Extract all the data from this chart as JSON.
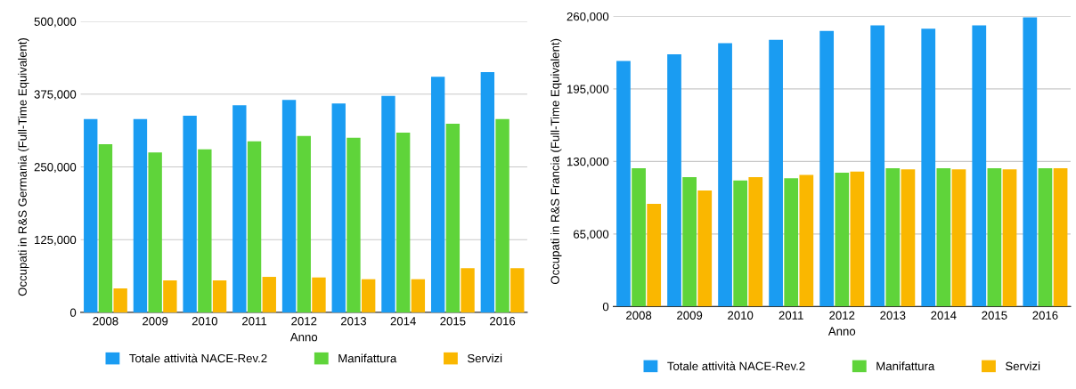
{
  "chart_data": [
    {
      "type": "bar",
      "xlabel": "Anno",
      "ylabel": "Occupati in R&S Germania (Full-Time Equivalent)",
      "categories": [
        "2008",
        "2009",
        "2010",
        "2011",
        "2012",
        "2013",
        "2014",
        "2015",
        "2016"
      ],
      "series": [
        {
          "name": "Totale attività NACE-Rev.2",
          "color": "#1a9cf2",
          "values": [
            332000,
            332000,
            338000,
            356000,
            365000,
            359000,
            372000,
            405000,
            413000
          ]
        },
        {
          "name": "Manifattura",
          "color": "#5fd43a",
          "values": [
            289000,
            275000,
            280000,
            294000,
            303000,
            300000,
            309000,
            324000,
            332000
          ]
        },
        {
          "name": "Servizi",
          "color": "#fab700",
          "values": [
            41000,
            55000,
            55000,
            61000,
            60000,
            57000,
            57000,
            76000,
            76000
          ]
        }
      ],
      "ylim": [
        0,
        500000
      ],
      "yticks": [
        {
          "value": 0,
          "label": "0"
        },
        {
          "value": 125000,
          "label": "125,000"
        },
        {
          "value": 250000,
          "label": "250,000"
        },
        {
          "value": 375000,
          "label": "375,000"
        },
        {
          "value": 500000,
          "label": "500,000"
        }
      ],
      "grid": "y",
      "legend": "bottom"
    },
    {
      "type": "bar",
      "xlabel": "Anno",
      "ylabel": "Occupati in R&S Francia (Full-Time Equivalent)",
      "categories": [
        "2008",
        "2009",
        "2010",
        "2011",
        "2012",
        "2013",
        "2014",
        "2015",
        "2016"
      ],
      "series": [
        {
          "name": "Totale attività NACE-Rev.2",
          "color": "#1a9cf2",
          "values": [
            220000,
            226000,
            236000,
            239000,
            247000,
            252000,
            249000,
            252000,
            259000
          ]
        },
        {
          "name": "Manifattura",
          "color": "#5fd43a",
          "values": [
            124000,
            116000,
            113000,
            115000,
            120000,
            124000,
            124000,
            124000,
            124000
          ]
        },
        {
          "name": "Servizi",
          "color": "#fab700",
          "values": [
            92000,
            104000,
            116000,
            118000,
            121000,
            123000,
            123000,
            123000,
            124000
          ]
        }
      ],
      "ylim": [
        0,
        260000
      ],
      "yticks": [
        {
          "value": 0,
          "label": "0"
        },
        {
          "value": 65000,
          "label": "65,000"
        },
        {
          "value": 130000,
          "label": "130,000"
        },
        {
          "value": 195000,
          "label": "195,000"
        },
        {
          "value": 260000,
          "label": "260,000"
        }
      ],
      "grid": "y",
      "legend": "bottom"
    }
  ]
}
